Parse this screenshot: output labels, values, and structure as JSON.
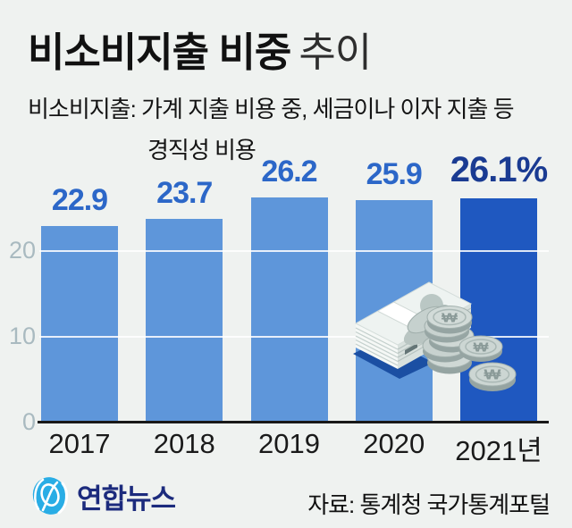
{
  "title": {
    "bold": "비소비지출 비중",
    "light": "추이"
  },
  "subtitle": {
    "line1": "비소비지출: 가계 지출 비용 중, 세금이나 이자 지출 등",
    "line2": "경직성 비용"
  },
  "chart_data": {
    "type": "bar",
    "title": "비소비지출 비중 추이",
    "categories": [
      "2017",
      "2018",
      "2019",
      "2020",
      "2021년"
    ],
    "values": [
      22.9,
      23.7,
      26.2,
      25.9,
      26.1
    ],
    "value_labels": [
      "22.9",
      "23.7",
      "26.2",
      "25.9",
      "26.1%"
    ],
    "unit": "%",
    "xlabel": "",
    "ylabel": "",
    "ylim": [
      0,
      27
    ],
    "yticks": [
      "0",
      "10",
      "20"
    ],
    "ytick_values": [
      0,
      10,
      20
    ],
    "grid": "horizontal",
    "legend": "none",
    "bar_colors": [
      "#5e96da",
      "#5e96da",
      "#5e96da",
      "#5e96da",
      "#1f58c0"
    ],
    "label_colors": [
      "#2c67c8",
      "#2c67c8",
      "#2c67c8",
      "#2c67c8",
      "#1a3b92"
    ],
    "highlight_index": 4
  },
  "icons": {
    "money_illustration": "banknote-stack-and-won-coins",
    "logo_icon": "yonhap-swirl-globe",
    "won_symbol": "₩"
  },
  "colors": {
    "background": "#eff2f0",
    "axis": "#191919",
    "tick_text": "#a9bac0",
    "logo_blue": "#29ade5",
    "logo_navy": "#1c2b7d",
    "shadow_blue": "#1b4fa3"
  },
  "footer": {
    "logo_text": "연합뉴스",
    "source": "자료: 통계청 국가통계포털"
  }
}
